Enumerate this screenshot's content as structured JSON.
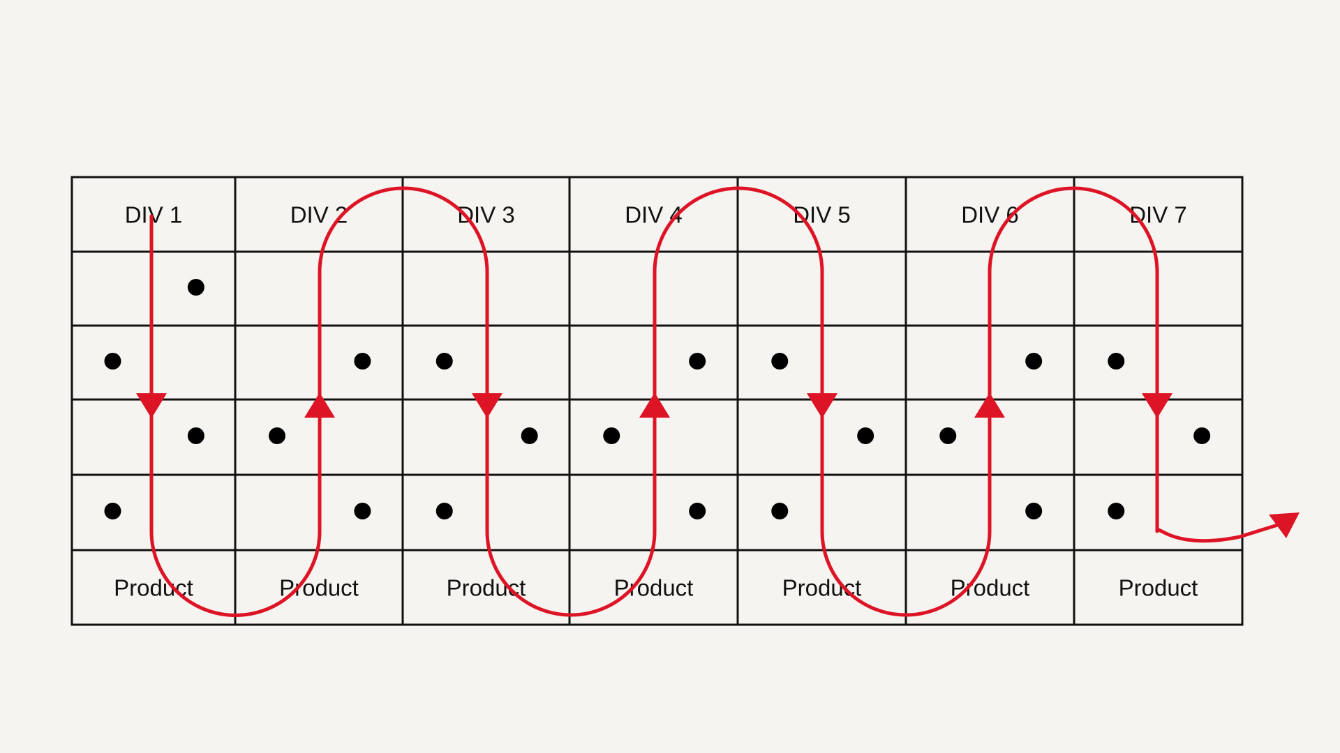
{
  "colors": {
    "background": "#f6f4f0",
    "grid": "#111111",
    "flow": "#dd1425",
    "dot": "#000000"
  },
  "columns": [
    {
      "header": "DIV 1",
      "footer": "Product",
      "dots": [
        [
          2,
          "right"
        ],
        [
          3,
          "left"
        ],
        [
          4,
          "right"
        ],
        [
          5,
          "left"
        ]
      ]
    },
    {
      "header": "DIV 2",
      "footer": "Product",
      "dots": [
        [
          3,
          "right"
        ],
        [
          4,
          "left"
        ],
        [
          5,
          "right"
        ]
      ]
    },
    {
      "header": "DIV 3",
      "footer": "Product",
      "dots": [
        [
          3,
          "left"
        ],
        [
          4,
          "right"
        ],
        [
          5,
          "left"
        ]
      ]
    },
    {
      "header": "DIV 4",
      "footer": "Product",
      "dots": [
        [
          3,
          "right"
        ],
        [
          4,
          "left"
        ],
        [
          5,
          "right"
        ]
      ]
    },
    {
      "header": "DIV 5",
      "footer": "Product",
      "dots": [
        [
          3,
          "left"
        ],
        [
          4,
          "right"
        ],
        [
          5,
          "left"
        ]
      ]
    },
    {
      "header": "DIV 6",
      "footer": "Product",
      "dots": [
        [
          3,
          "right"
        ],
        [
          4,
          "left"
        ],
        [
          5,
          "right"
        ]
      ]
    },
    {
      "header": "DIV 7",
      "footer": "Product",
      "dots": [
        [
          3,
          "left"
        ],
        [
          4,
          "right"
        ],
        [
          5,
          "left"
        ]
      ]
    }
  ],
  "flow": {
    "type": "serpentine",
    "start": "DIV 1",
    "direction_by_column": [
      "down",
      "up",
      "down",
      "up",
      "down",
      "up",
      "down"
    ],
    "exit": "right"
  }
}
